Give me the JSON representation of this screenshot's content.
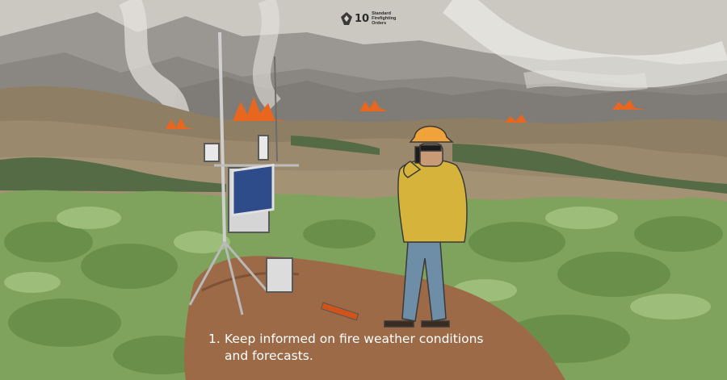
{
  "logo": {
    "number": "10",
    "text_lines": [
      "Standard",
      "Firefighting",
      "Orders"
    ]
  },
  "caption": {
    "number": "1.",
    "line1": "Keep informed on fire weather conditions",
    "line2": "and forecasts."
  },
  "colors": {
    "sky": "#c9c6c0",
    "smoke": "#e6e3de",
    "far_mountains": "#8d8a86",
    "hills": "#8f7f64",
    "fire": "#e8661e",
    "brush": "#7fa35c",
    "dirt": "#9c6a47",
    "caption_text": "#ffffff"
  }
}
